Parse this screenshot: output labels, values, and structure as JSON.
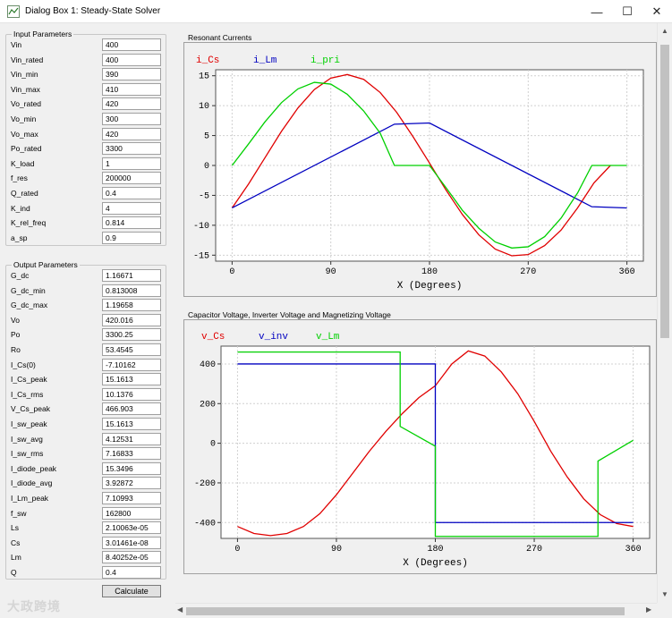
{
  "window": {
    "title": "Dialog Box 1: Steady-State Solver",
    "controls": {
      "minimize": "—",
      "maximize": "☐",
      "close": "✕"
    },
    "icon": "plot-app-icon"
  },
  "input_params": {
    "title": "Input Parameters",
    "rows": [
      {
        "label": "Vin",
        "value": "400"
      },
      {
        "label": "Vin_rated",
        "value": "400"
      },
      {
        "label": "Vin_min",
        "value": "390"
      },
      {
        "label": "Vin_max",
        "value": "410"
      },
      {
        "label": "Vo_rated",
        "value": "420"
      },
      {
        "label": "Vo_min",
        "value": "300"
      },
      {
        "label": "Vo_max",
        "value": "420"
      },
      {
        "label": "Po_rated",
        "value": "3300"
      },
      {
        "label": "K_load",
        "value": "1"
      },
      {
        "label": "f_res",
        "value": "200000"
      },
      {
        "label": "Q_rated",
        "value": "0.4"
      },
      {
        "label": "K_ind",
        "value": "4"
      },
      {
        "label": "K_rel_freq",
        "value": "0.814"
      },
      {
        "label": "a_sp",
        "value": "0.9"
      }
    ]
  },
  "output_params": {
    "title": "Output Parameters",
    "rows": [
      {
        "label": "G_dc",
        "value": "1.16671"
      },
      {
        "label": "G_dc_min",
        "value": "0.813008"
      },
      {
        "label": "G_dc_max",
        "value": "1.19658"
      },
      {
        "label": "Vo",
        "value": "420.016"
      },
      {
        "label": "Po",
        "value": "3300.25"
      },
      {
        "label": "Ro",
        "value": "53.4545"
      },
      {
        "label": "I_Cs(0)",
        "value": "-7.10162"
      },
      {
        "label": "I_Cs_peak",
        "value": "15.1613"
      },
      {
        "label": "I_Cs_rms",
        "value": "10.1376"
      },
      {
        "label": "V_Cs_peak",
        "value": "466.903"
      },
      {
        "label": "I_sw_peak",
        "value": "15.1613"
      },
      {
        "label": "I_sw_avg",
        "value": "4.12531"
      },
      {
        "label": "I_sw_rms",
        "value": "7.16833"
      },
      {
        "label": "I_diode_peak",
        "value": "15.3496"
      },
      {
        "label": "I_diode_avg",
        "value": "3.92872"
      },
      {
        "label": "I_Lm_peak",
        "value": "7.10993"
      },
      {
        "label": "f_sw",
        "value": "162800"
      },
      {
        "label": "Ls",
        "value": "2.10063e-05"
      },
      {
        "label": "Cs",
        "value": "3.01461e-08"
      },
      {
        "label": "Lm",
        "value": "8.40252e-05"
      },
      {
        "label": "Q",
        "value": "0.4"
      }
    ]
  },
  "calculate_label": "Calculate",
  "watermark": "大政跨境",
  "panels": {
    "currents_label": "Resonant Currents",
    "voltages_label": "Capacitor Voltage, Inverter Voltage and Magnetizing Voltage"
  },
  "colors": {
    "red": "#e00000",
    "blue": "#0000c0",
    "green": "#00d000"
  },
  "chart_data": [
    {
      "type": "line",
      "title": "",
      "xlabel": "X (Degrees)",
      "ylabel": "",
      "xlim": [
        -15,
        375
      ],
      "ylim": [
        -16,
        16
      ],
      "xticks": [
        0,
        90,
        180,
        270,
        360
      ],
      "yticks": [
        15,
        10,
        5,
        0,
        -5,
        -10,
        -15
      ],
      "grid": true,
      "legend": "top-left",
      "series": [
        {
          "name": "i_Cs",
          "color": "#e00000",
          "x": [
            0,
            15,
            30,
            45,
            60,
            75,
            90,
            105,
            120,
            135,
            150,
            165,
            180,
            195,
            210,
            225,
            240,
            255,
            270,
            285,
            300,
            315,
            330,
            345
          ],
          "y": [
            -7.1,
            -3.1,
            1.3,
            5.7,
            9.6,
            12.7,
            14.6,
            15.2,
            14.4,
            12.2,
            8.9,
            4.8,
            0.4,
            -4.1,
            -8.2,
            -11.6,
            -14.0,
            -15.1,
            -14.9,
            -13.4,
            -10.8,
            -7.1,
            -2.9,
            0.0
          ]
        },
        {
          "name": "i_Lm",
          "color": "#0000c0",
          "x": [
            0,
            148,
            180,
            328,
            360
          ],
          "y": [
            -7.1,
            6.9,
            7.1,
            -6.9,
            -7.1
          ]
        },
        {
          "name": "i_pri",
          "color": "#00d000",
          "x": [
            0,
            15,
            30,
            45,
            60,
            75,
            90,
            105,
            120,
            135,
            148,
            180,
            195,
            210,
            225,
            240,
            255,
            270,
            285,
            300,
            315,
            328,
            360
          ],
          "y": [
            0,
            3.6,
            7.3,
            10.5,
            12.8,
            13.9,
            13.6,
            11.9,
            9.1,
            5.4,
            0,
            0,
            -3.7,
            -7.5,
            -10.5,
            -12.8,
            -13.8,
            -13.6,
            -11.9,
            -8.8,
            -4.6,
            0,
            0
          ]
        }
      ]
    },
    {
      "type": "line",
      "title": "",
      "xlabel": "X (Degrees)",
      "ylabel": "",
      "xlim": [
        -15,
        375
      ],
      "ylim": [
        -480,
        490
      ],
      "xticks": [
        0,
        90,
        180,
        270,
        360
      ],
      "yticks": [
        400,
        200,
        0,
        -200,
        -400
      ],
      "grid": true,
      "legend": "top-left",
      "series": [
        {
          "name": "v_Cs",
          "color": "#e00000",
          "x": [
            0,
            15,
            30,
            45,
            60,
            75,
            90,
            105,
            120,
            135,
            150,
            165,
            180,
            195,
            210,
            225,
            240,
            255,
            270,
            285,
            300,
            315,
            330,
            345,
            360
          ],
          "y": [
            -420,
            -455,
            -466,
            -455,
            -420,
            -355,
            -260,
            -150,
            -40,
            60,
            150,
            230,
            290,
            400,
            466,
            440,
            360,
            250,
            110,
            -40,
            -170,
            -280,
            -360,
            -405,
            -420
          ]
        },
        {
          "name": "v_inv",
          "color": "#0000c0",
          "x": [
            0,
            180,
            180,
            360
          ],
          "y": [
            400,
            400,
            -400,
            -400
          ]
        },
        {
          "name": "v_Lm",
          "color": "#00d000",
          "x": [
            0,
            148,
            148,
            180,
            180,
            328,
            328,
            360
          ],
          "y": [
            460,
            460,
            85,
            -15,
            -470,
            -470,
            -90,
            15
          ]
        }
      ]
    }
  ]
}
